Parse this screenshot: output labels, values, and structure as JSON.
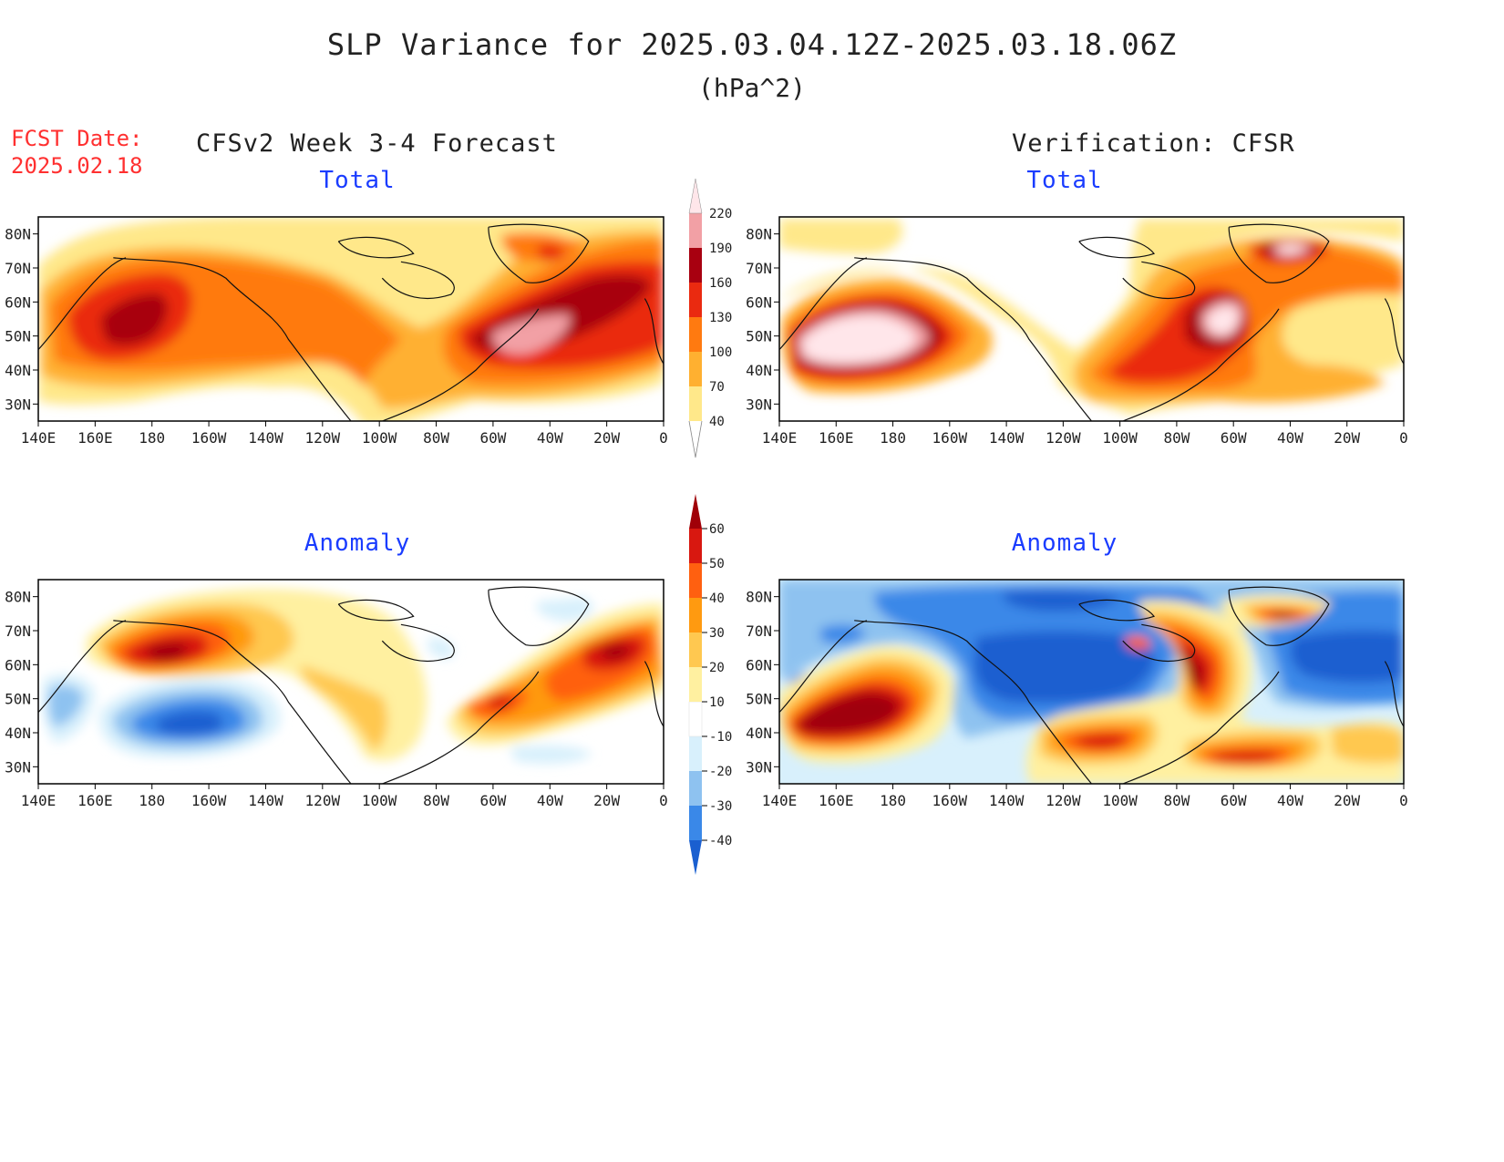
{
  "header": {
    "title": "SLP Variance for 2025.03.04.12Z-2025.03.18.06Z",
    "units": "(hPa^2)",
    "fcst_date_label": "FCST Date:",
    "fcst_date_value": "2025.02.18",
    "left_heading": "CFSv2 Week 3-4 Forecast",
    "right_heading": "Verification: CFSR"
  },
  "panels": {
    "top_left_title": "Total",
    "top_right_title": "Total",
    "bottom_left_title": "Anomaly",
    "bottom_right_title": "Anomaly"
  },
  "axes": {
    "lat_labels": [
      "80N",
      "70N",
      "60N",
      "50N",
      "40N",
      "30N"
    ],
    "lon_labels": [
      "140E",
      "160E",
      "180",
      "160W",
      "140W",
      "120W",
      "100W",
      "80W",
      "60W",
      "40W",
      "20W",
      "0"
    ]
  },
  "colorbars": {
    "total": {
      "levels": [
        "40",
        "70",
        "100",
        "130",
        "160",
        "190",
        "220"
      ],
      "colors": [
        "#ffe88a",
        "#ffb030",
        "#ff7a10",
        "#ea2a10",
        "#a80010",
        "#f2a0a5",
        "#ffe6ea"
      ]
    },
    "anomaly": {
      "levels": [
        "-40",
        "-30",
        "-20",
        "-10",
        "10",
        "20",
        "30",
        "40",
        "50",
        "60"
      ],
      "colors": [
        "#1a5fd0",
        "#3a88e8",
        "#8ec2f0",
        "#d8f0fc",
        "#ffffff",
        "#fff0a0",
        "#ffc850",
        "#ff9a10",
        "#ff6010",
        "#d81810",
        "#a00008"
      ]
    }
  },
  "colors": {
    "title_text": "#222222",
    "fcst_text": "#ff3030",
    "panel_title_text": "#1a3cff"
  }
}
